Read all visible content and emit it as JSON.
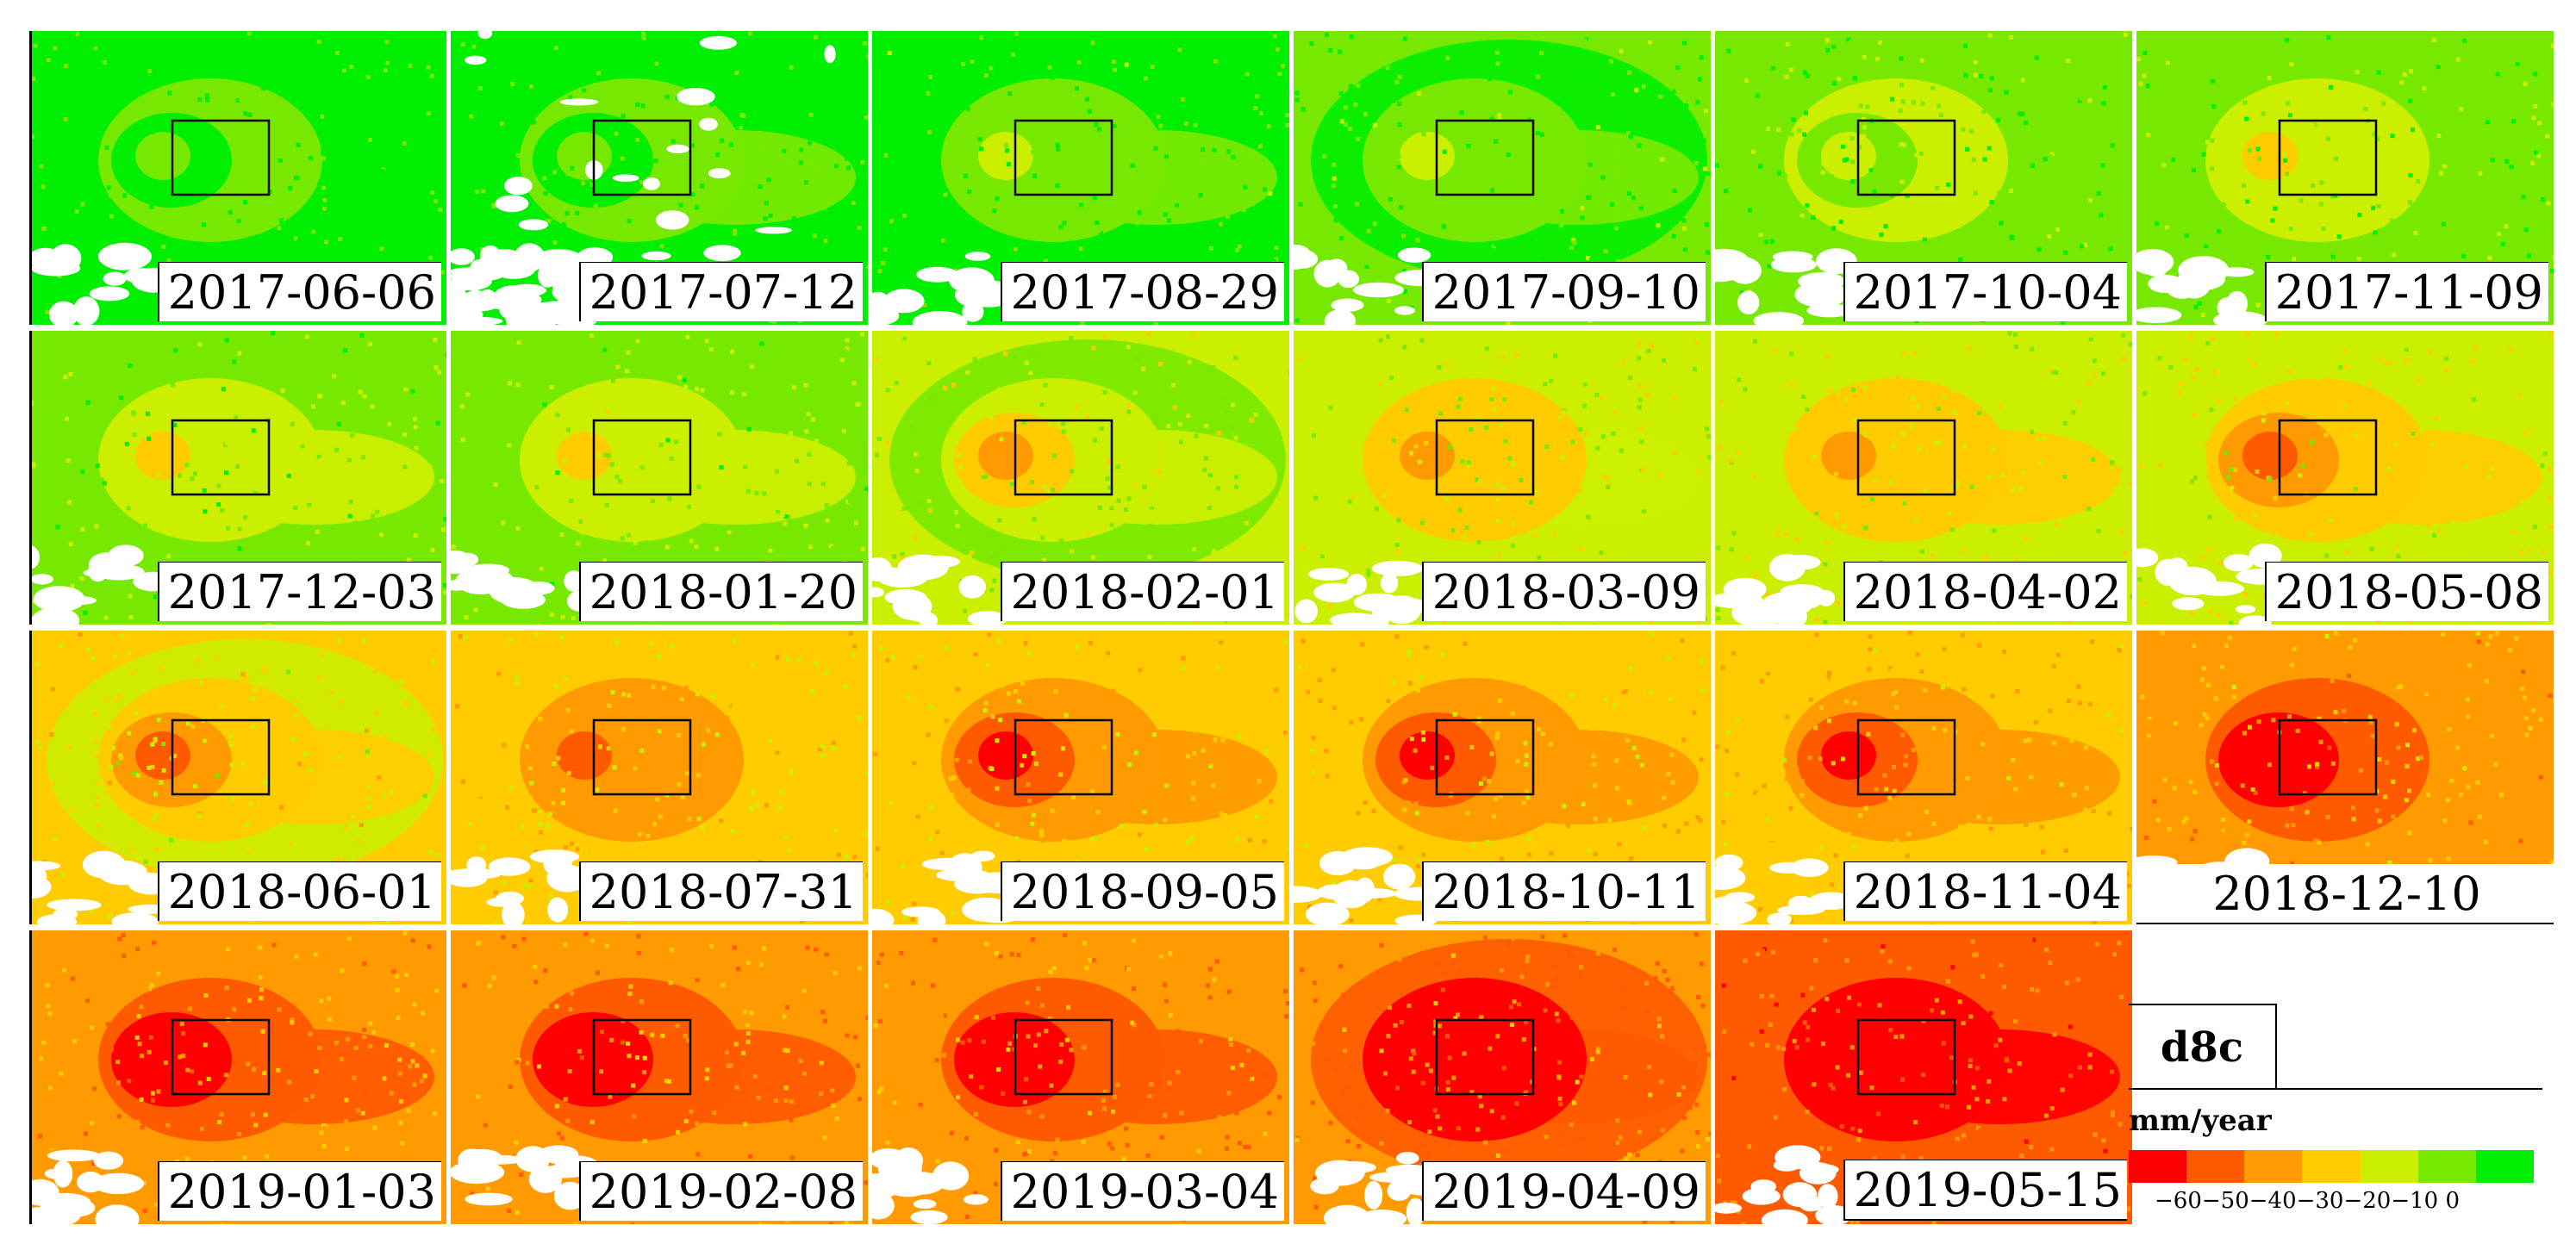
{
  "panels": [
    {
      "date": "2017-06-06",
      "stage": 0
    },
    {
      "date": "2017-07-12",
      "stage": 1
    },
    {
      "date": "2017-08-29",
      "stage": 2
    },
    {
      "date": "2017-09-10",
      "stage": 3
    },
    {
      "date": "2017-10-04",
      "stage": 4
    },
    {
      "date": "2017-11-09",
      "stage": 5
    },
    {
      "date": "2017-12-03",
      "stage": 6
    },
    {
      "date": "2018-01-20",
      "stage": 7
    },
    {
      "date": "2018-02-01",
      "stage": 8
    },
    {
      "date": "2018-03-09",
      "stage": 9
    },
    {
      "date": "2018-04-02",
      "stage": 10
    },
    {
      "date": "2018-05-08",
      "stage": 11
    },
    {
      "date": "2018-06-01",
      "stage": 12
    },
    {
      "date": "2018-07-31",
      "stage": 13
    },
    {
      "date": "2018-09-05",
      "stage": 14
    },
    {
      "date": "2018-10-11",
      "stage": 15
    },
    {
      "date": "2018-11-04",
      "stage": 16
    },
    {
      "date": "2018-12-10",
      "stage": 17
    },
    {
      "date": "2019-01-03",
      "stage": 18
    },
    {
      "date": "2019-02-08",
      "stage": 19
    },
    {
      "date": "2019-03-04",
      "stage": 20
    },
    {
      "date": "2019-04-09",
      "stage": 21
    },
    {
      "date": "2019-05-15",
      "stage": 22
    }
  ],
  "panel_id": "d8c",
  "legend": {
    "unit": "mm/year",
    "tick_labels": "−60−50−40−30−20−10  0",
    "colors": [
      "#ff0000",
      "#ff5a00",
      "#ff9a00",
      "#ffcc00",
      "#ccee00",
      "#77e800",
      "#00ee00"
    ],
    "values": [
      -60,
      -50,
      -40,
      -30,
      -20,
      -10,
      0
    ]
  }
}
